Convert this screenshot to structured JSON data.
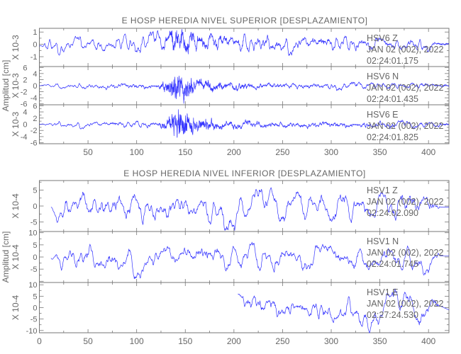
{
  "chart_data": [
    {
      "type": "line",
      "title": "E HOSP HEREDIA NIVEL SUPERIOR [DESPLAZAMIENTO]",
      "ylabel": "Amplitud [cm]",
      "xlim": [
        0,
        421
      ],
      "x_ticks": [
        50,
        100,
        150,
        200,
        250,
        300,
        350,
        400
      ],
      "panels": [
        {
          "scale_label": "X 10-3",
          "ylim": [
            -1.8,
            1.3
          ],
          "y_ticks": [
            1,
            0,
            -1
          ],
          "station": "HSV6   Z",
          "date": "JAN 02 (002), 2022",
          "time": "02:24:01.175",
          "start": 0,
          "lf_env": [
            [
              0,
              0.02
            ],
            [
              10,
              0.3
            ],
            [
              100,
              0.35
            ],
            [
              110,
              0.45
            ],
            [
              200,
              0.45
            ],
            [
              300,
              0.35
            ],
            [
              400,
              0.3
            ],
            [
              410,
              0.02
            ],
            [
              421,
              0.02
            ]
          ],
          "hf_env": [
            [
              0,
              0.02
            ],
            [
              120,
              0.08
            ],
            [
              130,
              0.25
            ],
            [
              140,
              0.9
            ],
            [
              150,
              0.7
            ],
            [
              160,
              0.4
            ],
            [
              200,
              0.15
            ],
            [
              420,
              0.1
            ]
          ],
          "lf_offset": [
            [
              0,
              -0.15
            ],
            [
              100,
              0.2
            ],
            [
              150,
              0.3
            ],
            [
              200,
              0.1
            ],
            [
              300,
              0.1
            ],
            [
              410,
              0.05
            ]
          ]
        },
        {
          "scale_label": "X 10-3",
          "ylim": [
            -6.3,
            6.3
          ],
          "y_ticks": [
            6,
            4,
            2,
            0,
            -2,
            -4,
            -6
          ],
          "station": "HSV6   N",
          "date": "JAN 02 (002), 2022",
          "time": "02:24:01.435",
          "start": 0,
          "lf_env": [
            [
              0,
              0.05
            ],
            [
              20,
              0.6
            ],
            [
              400,
              0.6
            ],
            [
              421,
              0.05
            ]
          ],
          "hf_env": [
            [
              0,
              0.05
            ],
            [
              120,
              0.4
            ],
            [
              130,
              1.5
            ],
            [
              140,
              5.5
            ],
            [
              150,
              4.5
            ],
            [
              160,
              2
            ],
            [
              190,
              1
            ],
            [
              250,
              0.4
            ],
            [
              420,
              0.3
            ]
          ],
          "lf_offset": [
            [
              0,
              0
            ]
          ]
        },
        {
          "scale_label": "X 10-3",
          "ylim": [
            -6.3,
            6.3
          ],
          "y_ticks": [
            6,
            4,
            2,
            0,
            -2,
            -4,
            -6
          ],
          "station": "HSV6   E",
          "date": "JAN 02 (002), 2022",
          "time": "02:24:01.825",
          "start": 0,
          "lf_env": [
            [
              0,
              0.05
            ],
            [
              20,
              0.6
            ],
            [
              400,
              0.6
            ],
            [
              421,
              0.05
            ]
          ],
          "hf_env": [
            [
              0,
              0.05
            ],
            [
              120,
              0.4
            ],
            [
              130,
              1.5
            ],
            [
              140,
              6
            ],
            [
              150,
              4.5
            ],
            [
              160,
              2.5
            ],
            [
              190,
              1
            ],
            [
              250,
              0.5
            ],
            [
              420,
              0.3
            ]
          ],
          "lf_offset": [
            [
              0,
              0
            ]
          ]
        }
      ]
    },
    {
      "type": "line",
      "title": "E HOSP HEREDIA NIVEL INFERIOR [DESPLAZAMIENTO]",
      "ylabel": "Amplitud [cm]",
      "xlim": [
        0,
        421
      ],
      "x_ticks": [
        0,
        50,
        100,
        150,
        200,
        250,
        300,
        350,
        400
      ],
      "panels": [
        {
          "scale_label": "X 10-4",
          "ylim": [
            -8,
            8
          ],
          "y_ticks": [
            5,
            0,
            -5
          ],
          "station": "HSV1   Z",
          "date": "JAN 02 (002), 2022",
          "time": "02:24:02.090",
          "start": 12,
          "lf_env": [
            [
              0,
              0
            ],
            [
              12,
              0
            ],
            [
              20,
              3
            ],
            [
              400,
              3.2
            ],
            [
              410,
              0
            ],
            [
              421,
              0
            ]
          ],
          "hf_env": [
            [
              0,
              0
            ],
            [
              12,
              0
            ],
            [
              20,
              1
            ],
            [
              410,
              1
            ],
            [
              412,
              0
            ],
            [
              421,
              0
            ]
          ],
          "lf_offset": [
            [
              0,
              -0.3
            ]
          ]
        },
        {
          "scale_label": "X 10-4",
          "ylim": [
            -10.5,
            10.5
          ],
          "y_ticks": [
            10,
            5,
            0,
            -5
          ],
          "station": "HSV1   N",
          "date": "JAN 02 (002), 2022",
          "time": "02:24:01.745",
          "start": 12,
          "lf_env": [
            [
              0,
              0
            ],
            [
              12,
              0
            ],
            [
              20,
              3.5
            ],
            [
              400,
              3.5
            ],
            [
              410,
              0
            ],
            [
              421,
              0
            ]
          ],
          "hf_env": [
            [
              0,
              0
            ],
            [
              12,
              0
            ],
            [
              20,
              1.2
            ],
            [
              410,
              1.2
            ],
            [
              412,
              0
            ],
            [
              421,
              0
            ]
          ],
          "lf_offset": [
            [
              0,
              -0.5
            ],
            [
              100,
              0
            ],
            [
              410,
              0.5
            ]
          ]
        },
        {
          "scale_label": "X 10-4",
          "ylim": [
            -11,
            11
          ],
          "y_ticks": [
            10,
            5,
            0,
            -5,
            -10
          ],
          "station": "HSV1   E",
          "date": "JAN 02 (002), 2022",
          "time": "02:27:24.530",
          "start": 204,
          "lf_env": [
            [
              204,
              0
            ],
            [
              210,
              3.5
            ],
            [
              400,
              4
            ],
            [
              410,
              0
            ],
            [
              421,
              0
            ]
          ],
          "hf_env": [
            [
              204,
              0
            ],
            [
              210,
              1.2
            ],
            [
              410,
              1.2
            ],
            [
              412,
              0
            ],
            [
              421,
              0
            ]
          ],
          "lf_offset": [
            [
              204,
              6
            ],
            [
              215,
              3
            ],
            [
              300,
              0
            ],
            [
              330,
              -3
            ],
            [
              400,
              3
            ],
            [
              421,
              -1
            ]
          ]
        }
      ]
    }
  ]
}
